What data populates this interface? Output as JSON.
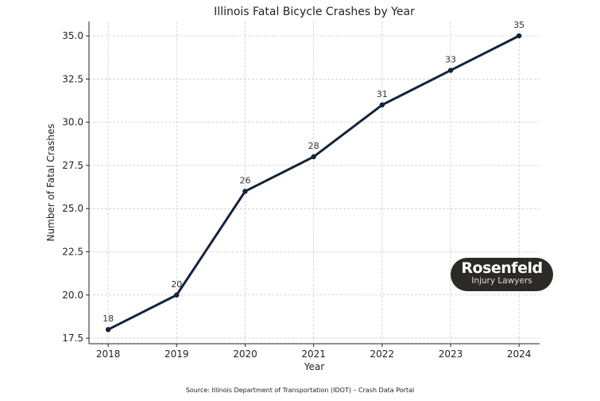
{
  "chart_data": {
    "type": "line",
    "title": "Illinois Fatal Bicycle Crashes by Year",
    "xlabel": "Year",
    "ylabel": "Number of Fatal Crashes",
    "x": [
      2018,
      2019,
      2020,
      2021,
      2022,
      2023,
      2024
    ],
    "values": [
      18,
      20,
      26,
      28,
      31,
      33,
      35
    ],
    "data_labels": [
      "18",
      "20",
      "26",
      "28",
      "31",
      "33",
      "35"
    ],
    "x_ticks": [
      "2018",
      "2019",
      "2020",
      "2021",
      "2022",
      "2023",
      "2024"
    ],
    "y_ticks": [
      17.5,
      20.0,
      22.5,
      25.0,
      27.5,
      30.0,
      32.5,
      35.0
    ],
    "y_tick_labels": [
      "17.5",
      "20.0",
      "22.5",
      "25.0",
      "27.5",
      "30.0",
      "32.5",
      "35.0"
    ],
    "xlim": [
      2017.72,
      2024.3
    ],
    "ylim": [
      17.18,
      35.83
    ],
    "grid": true,
    "line_color": "#13243a",
    "source": "Source: Illinois Department of Transportation (IDOT) – Crash Data Portal"
  },
  "logo": {
    "line1": "Rosenfeld",
    "line2": "Injury Lawyers"
  }
}
